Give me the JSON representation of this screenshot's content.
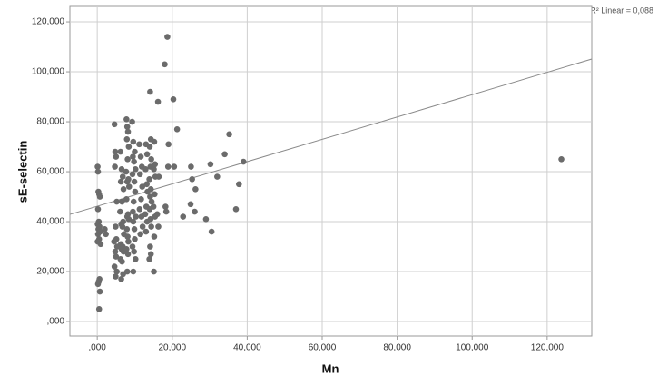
{
  "chart_data": {
    "type": "scatter",
    "x_label": "Mn",
    "y_label": "sE-selectin",
    "annotation": "R² Linear = 0,088",
    "xlim": [
      -7.3,
      131.9
    ],
    "ylim": [
      -5.8,
      126.2
    ],
    "xticks": [
      {
        "value": 0,
        "label": ",000"
      },
      {
        "value": 20,
        "label": "20,000"
      },
      {
        "value": 40,
        "label": "40,000"
      },
      {
        "value": 60,
        "label": "60,000"
      },
      {
        "value": 80,
        "label": "80,000"
      },
      {
        "value": 100,
        "label": "100,000"
      },
      {
        "value": 120,
        "label": "120,000"
      }
    ],
    "yticks": [
      {
        "value": 0,
        "label": ",000"
      },
      {
        "value": 20,
        "label": "20,000"
      },
      {
        "value": 40,
        "label": "40,000"
      },
      {
        "value": 60,
        "label": "60,000"
      },
      {
        "value": 80,
        "label": "80,000"
      },
      {
        "value": 100,
        "label": "100,000"
      },
      {
        "value": 120,
        "label": "120,000"
      }
    ],
    "grid": true,
    "color": "#6b6b6b",
    "line_color": "#8a8a8a",
    "fit_line": {
      "x": [
        -7.3,
        131.9
      ],
      "y": [
        42.9,
        105.1
      ]
    },
    "series": [
      {
        "name": "sE-selectin",
        "x": [
          0.1,
          0.2,
          0.3,
          0.5,
          0.7,
          0.2,
          0.4,
          0.1,
          0.6,
          0.3,
          0.8,
          0.2,
          0.5,
          0.1,
          0.9,
          0.6,
          0.4,
          0.2,
          0.7,
          0.5,
          2.0,
          2.3,
          4.6,
          4.8,
          5.0,
          4.7,
          5.2,
          4.9,
          5.1,
          4.5,
          5.3,
          4.8,
          5.0,
          4.6,
          5.2,
          4.9,
          6.2,
          6.5,
          6.8,
          6.3,
          7.0,
          6.6,
          6.1,
          6.9,
          6.4,
          6.7,
          7.1,
          6.3,
          6.8,
          6.5,
          7.0,
          6.2,
          6.6,
          6.9,
          6.4,
          7.8,
          8.0,
          8.2,
          7.9,
          8.4,
          8.1,
          7.7,
          8.3,
          8.0,
          8.5,
          7.8,
          8.2,
          8.0,
          8.4,
          7.9,
          8.1,
          8.3,
          7.8,
          8.2,
          8.0,
          9.3,
          9.6,
          10.0,
          9.5,
          9.8,
          10.2,
          9.4,
          9.9,
          10.1,
          9.7,
          9.5,
          10.3,
          9.6,
          9.9,
          10.0,
          9.4,
          9.8,
          10.2,
          9.6,
          11.2,
          11.6,
          11.9,
          11.4,
          12.0,
          11.7,
          11.3,
          11.8,
          12.1,
          11.5,
          13.0,
          13.3,
          12.9,
          13.2,
          13.4,
          13.1,
          12.8,
          13.3,
          13.0,
          14.1,
          14.3,
          14.0,
          14.4,
          14.2,
          13.9,
          14.3,
          14.1,
          14.5,
          14.0,
          14.2,
          14.4,
          14.1,
          14.3,
          13.9,
          15.2,
          15.4,
          15.1,
          15.5,
          15.3,
          15.0,
          15.4,
          15.2,
          15.1,
          16.2,
          16.4,
          16.0,
          16.3,
          18.0,
          18.2,
          18.4,
          18.7,
          19.0,
          18.9,
          20.3,
          20.5,
          21.3,
          22.9,
          25.0,
          25.3,
          24.9,
          26.2,
          26.0,
          29.0,
          30.2,
          30.5,
          32.0,
          34.0,
          35.2,
          37.0,
          37.8,
          39.0,
          123.8
        ],
        "values": [
          62,
          60,
          52,
          51,
          50,
          45,
          40,
          39,
          38,
          37,
          36,
          35,
          33,
          32,
          31,
          17,
          16,
          15,
          12,
          5,
          37,
          35,
          79,
          68,
          66,
          62,
          48,
          38,
          33,
          32,
          30,
          28,
          26,
          22,
          20,
          18,
          68,
          61,
          58,
          56,
          53,
          48,
          44,
          40,
          39,
          38,
          35,
          31,
          30,
          29,
          28,
          25,
          24,
          19,
          17,
          81,
          78,
          76,
          73,
          70,
          65,
          60,
          57,
          56,
          54,
          49,
          43,
          42,
          41,
          37,
          34,
          32,
          29,
          27,
          20,
          80,
          72,
          68,
          66,
          64,
          61,
          59,
          56,
          52,
          48,
          44,
          42,
          40,
          37,
          33,
          30,
          28,
          25,
          20,
          71,
          66,
          62,
          59,
          54,
          49,
          45,
          42,
          38,
          35,
          71,
          67,
          61,
          55,
          52,
          46,
          43,
          40,
          36,
          92,
          73,
          70,
          65,
          62,
          57,
          53,
          50,
          48,
          45,
          41,
          38,
          30,
          27,
          25,
          72,
          63,
          61,
          58,
          51,
          46,
          42,
          34,
          20,
          88,
          58,
          43,
          38,
          103,
          46,
          44,
          114,
          71,
          62,
          89,
          62,
          77,
          42,
          62,
          57,
          47,
          53,
          44,
          41,
          63,
          36,
          58,
          67,
          75,
          45,
          55,
          64,
          65
        ]
      }
    ]
  }
}
